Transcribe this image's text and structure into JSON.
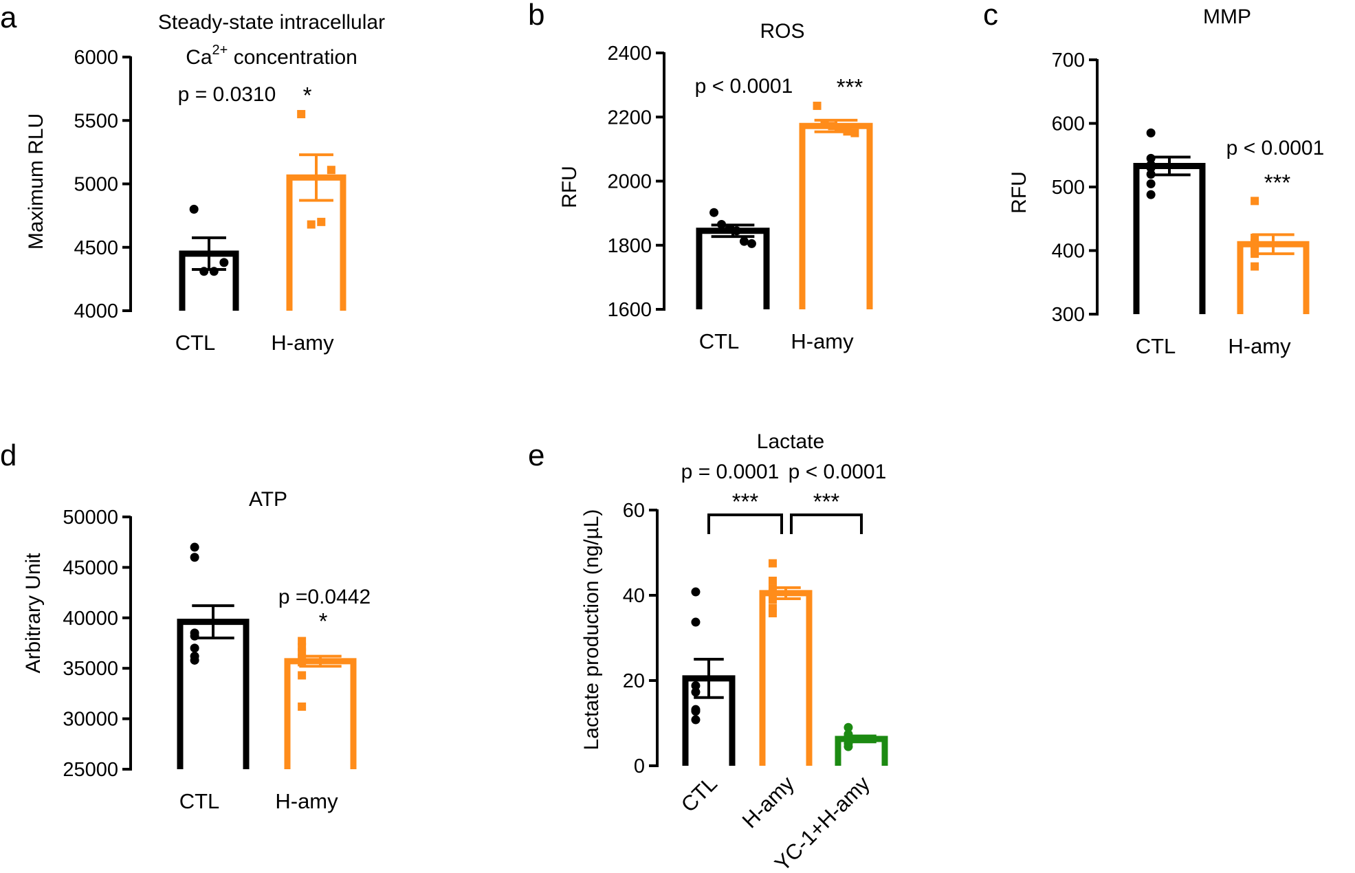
{
  "figure": {
    "panels": [
      {
        "letter": "a",
        "title_lines": [
          "Steady-state intracellular"
        ],
        "title_math": {
          "prefix": "Ca",
          "sup": "2+",
          "suffix": " concentration"
        }
      },
      {
        "letter": "b",
        "title_lines": [
          "ROS"
        ]
      },
      {
        "letter": "c",
        "title_lines": [
          "MMP"
        ]
      },
      {
        "letter": "d",
        "title_lines": [
          "ATP"
        ]
      },
      {
        "letter": "e",
        "title_lines": [
          "Lactate"
        ]
      }
    ]
  },
  "chart_data": [
    {
      "id": "a",
      "type": "bar",
      "title": "Steady-state intracellular Ca2+ concentration",
      "ylabel": "Maximum RLU",
      "xlabel": "",
      "ylim": [
        4000,
        6000
      ],
      "yticks": [
        4000,
        4500,
        5000,
        5500,
        6000
      ],
      "categories": [
        "CTL",
        "H-amy"
      ],
      "values": [
        4450,
        5050
      ],
      "sem": [
        125,
        180
      ],
      "points": [
        [
          4800,
          4380,
          4310,
          4310
        ],
        [
          5550,
          5110,
          4700,
          4680
        ]
      ],
      "colors": [
        "#000000",
        "#ff8c1a"
      ],
      "markers": [
        "circle",
        "square"
      ],
      "annotations": [
        {
          "text": "p = 0.0310",
          "stars": "*",
          "target": 1
        }
      ]
    },
    {
      "id": "b",
      "type": "bar",
      "title": "ROS",
      "ylabel": "RFU",
      "xlabel": "",
      "ylim": [
        1600,
        2400
      ],
      "yticks": [
        1600,
        1800,
        2000,
        2200,
        2400
      ],
      "categories": [
        "CTL",
        "H-amy"
      ],
      "values": [
        1845,
        2172
      ],
      "sem": [
        18,
        18
      ],
      "points": [
        [
          1902,
          1865,
          1850,
          1845,
          1812,
          1805
        ],
        [
          2235,
          2180,
          2172,
          2165,
          2155,
          2150
        ]
      ],
      "colors": [
        "#000000",
        "#ff8c1a"
      ],
      "markers": [
        "circle",
        "square"
      ],
      "annotations": [
        {
          "text": "p < 0.0001",
          "stars": "***",
          "target": 1
        }
      ]
    },
    {
      "id": "c",
      "type": "bar",
      "title": "MMP",
      "ylabel": "RFU",
      "xlabel": "",
      "ylim": [
        300,
        700
      ],
      "yticks": [
        300,
        400,
        500,
        600,
        700
      ],
      "categories": [
        "CTL",
        "H-amy"
      ],
      "values": [
        533,
        410
      ],
      "sem": [
        14,
        15
      ],
      "points": [
        [
          585,
          545,
          535,
          530,
          520,
          505,
          488
        ],
        [
          478,
          420,
          412,
          408,
          400,
          395,
          375
        ]
      ],
      "colors": [
        "#000000",
        "#ff8c1a"
      ],
      "markers": [
        "circle",
        "square"
      ],
      "annotations": [
        {
          "text": "p < 0.0001",
          "stars": "***",
          "target": 1
        }
      ]
    },
    {
      "id": "d",
      "type": "bar",
      "title": "ATP",
      "ylabel": "Arbitrary Unit",
      "xlabel": "",
      "ylim": [
        25000,
        50000
      ],
      "yticks": [
        25000,
        30000,
        35000,
        40000,
        45000,
        50000
      ],
      "categories": [
        "CTL",
        "H-amy"
      ],
      "values": [
        39600,
        35700
      ],
      "sem": [
        1600,
        500
      ],
      "points": [
        [
          47000,
          46000,
          38500,
          38200,
          37000,
          36200,
          35800
        ],
        [
          37700,
          37100,
          36600,
          36000,
          35600,
          34300,
          31200
        ]
      ],
      "colors": [
        "#000000",
        "#ff8c1a"
      ],
      "markers": [
        "circle",
        "square"
      ],
      "annotations": [
        {
          "text": "p =0.0442",
          "stars": "*",
          "target": 1
        }
      ]
    },
    {
      "id": "e",
      "type": "bar",
      "title": "Lactate",
      "ylabel": "Lactate production (ng/µL)",
      "xlabel": "",
      "ylim": [
        0,
        60
      ],
      "yticks": [
        0,
        20,
        40,
        60
      ],
      "categories": [
        "CTL",
        "H-amy",
        "YC-1+H-amy"
      ],
      "values": [
        20.5,
        40.5,
        6.3
      ],
      "sem": [
        4.5,
        1.3,
        0.7
      ],
      "points": [
        [
          40.8,
          33.7,
          18.8,
          17.3,
          13.2,
          12.8,
          10.8
        ],
        [
          47.5,
          43.4,
          41.5,
          40.5,
          39.0,
          37.0,
          35.8
        ],
        [
          9.0,
          7.4,
          6.9,
          6.3,
          5.9,
          5.2,
          4.5
        ]
      ],
      "colors": [
        "#000000",
        "#ff8c1a",
        "#1c8a12"
      ],
      "markers": [
        "circle",
        "square",
        "circle"
      ],
      "comparisons": [
        {
          "from": 0,
          "to": 1,
          "text": "p = 0.0001",
          "stars": "***"
        },
        {
          "from": 1,
          "to": 2,
          "text": "p < 0.0001",
          "stars": "***"
        }
      ]
    }
  ]
}
